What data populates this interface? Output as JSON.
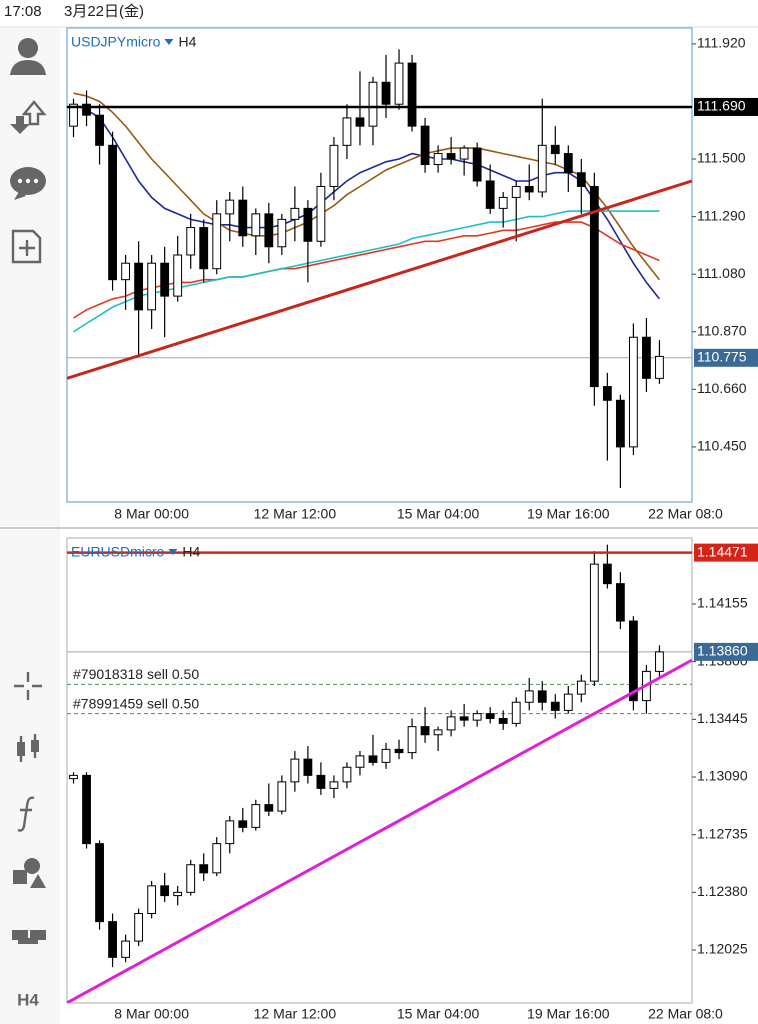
{
  "status_bar": {
    "time": "17:08",
    "date": "3月22日(金)"
  },
  "sidebar": {
    "timeframe": "H4"
  },
  "chart_data": [
    {
      "type": "candlestick",
      "title": "USDJPYmicro",
      "timeframe": "H4",
      "categories": [
        null,
        null,
        null,
        null,
        null,
        null,
        "8 Mar 00:00",
        null,
        null,
        null,
        null,
        null,
        null,
        null,
        null,
        null,
        null,
        "12 Mar 12:00",
        null,
        null,
        null,
        null,
        null,
        null,
        null,
        null,
        null,
        null,
        "15 Mar 04:00",
        null,
        null,
        null,
        null,
        null,
        null,
        null,
        null,
        null,
        "19 Mar 16:00",
        null,
        null,
        null,
        null,
        null,
        null,
        null,
        null,
        "22 Mar 08:0"
      ],
      "open": [
        111.62,
        111.7,
        111.66,
        111.55,
        111.06,
        111.12,
        110.95,
        111.12,
        111.0,
        111.15,
        111.25,
        111.1,
        111.3,
        111.35,
        111.22,
        111.3,
        111.18,
        111.28,
        111.32,
        111.2,
        111.4,
        111.55,
        111.65,
        111.62,
        111.78,
        111.7,
        111.85,
        111.62,
        111.48,
        111.52,
        111.5,
        111.54,
        111.42,
        111.32,
        111.36,
        111.4,
        111.38,
        111.55,
        111.52,
        111.45,
        111.4,
        110.67,
        110.62,
        110.45,
        110.85,
        110.7,
        null,
        null
      ],
      "high": [
        111.72,
        111.75,
        111.7,
        111.6,
        111.15,
        111.2,
        111.15,
        111.18,
        111.22,
        111.3,
        111.28,
        111.35,
        111.38,
        111.4,
        111.32,
        111.34,
        111.3,
        111.4,
        111.35,
        111.45,
        111.58,
        111.7,
        111.82,
        111.8,
        111.88,
        111.9,
        111.88,
        111.65,
        111.55,
        111.58,
        111.55,
        111.56,
        111.48,
        111.38,
        111.42,
        111.48,
        111.72,
        111.62,
        111.55,
        111.5,
        111.45,
        110.72,
        110.64,
        110.9,
        110.92,
        110.84,
        null,
        null
      ],
      "low": [
        111.58,
        111.62,
        111.48,
        111.02,
        110.95,
        110.78,
        110.88,
        110.85,
        110.98,
        111.1,
        111.05,
        111.08,
        111.2,
        111.18,
        111.15,
        111.12,
        111.15,
        111.2,
        111.05,
        111.18,
        111.35,
        111.5,
        111.55,
        111.55,
        111.65,
        111.68,
        111.6,
        111.45,
        111.45,
        111.48,
        111.44,
        111.4,
        111.3,
        111.25,
        111.2,
        111.35,
        111.36,
        111.48,
        111.38,
        111.3,
        110.6,
        110.4,
        110.3,
        110.42,
        110.65,
        110.68,
        null,
        null
      ],
      "close": [
        111.7,
        111.66,
        111.55,
        111.06,
        111.12,
        110.95,
        111.12,
        111.0,
        111.15,
        111.25,
        111.1,
        111.3,
        111.35,
        111.22,
        111.3,
        111.18,
        111.28,
        111.32,
        111.2,
        111.4,
        111.55,
        111.65,
        111.62,
        111.78,
        111.7,
        111.85,
        111.62,
        111.48,
        111.52,
        111.5,
        111.54,
        111.42,
        111.32,
        111.36,
        111.4,
        111.38,
        111.55,
        111.52,
        111.45,
        111.4,
        110.67,
        110.62,
        110.45,
        110.85,
        110.7,
        110.78,
        null,
        null
      ],
      "series": [
        {
          "color": "#1c2a9a",
          "values": [
            111.7,
            111.68,
            111.65,
            111.58,
            111.5,
            111.42,
            111.36,
            111.32,
            111.3,
            111.28,
            111.27,
            111.26,
            111.26,
            111.25,
            111.25,
            111.25,
            111.26,
            111.28,
            111.3,
            111.34,
            111.38,
            111.42,
            111.45,
            111.47,
            111.49,
            111.5,
            111.52,
            111.51,
            111.5,
            111.5,
            111.49,
            111.48,
            111.46,
            111.44,
            111.42,
            111.42,
            111.44,
            111.45,
            111.45,
            111.42,
            111.35,
            111.28,
            111.2,
            111.12,
            111.05,
            110.99,
            null,
            null
          ]
        },
        {
          "color": "#9a5a12",
          "values": [
            111.74,
            111.73,
            111.71,
            111.67,
            111.62,
            111.56,
            111.5,
            111.45,
            111.4,
            111.35,
            111.3,
            111.27,
            111.24,
            111.23,
            111.22,
            111.22,
            111.23,
            111.25,
            111.27,
            111.3,
            111.33,
            111.37,
            111.4,
            111.43,
            111.46,
            111.48,
            111.5,
            111.52,
            111.53,
            111.54,
            111.54,
            111.54,
            111.53,
            111.52,
            111.51,
            111.5,
            111.49,
            111.48,
            111.46,
            111.44,
            111.38,
            111.32,
            111.25,
            111.18,
            111.12,
            111.06,
            null,
            null
          ]
        },
        {
          "color": "#e03a22",
          "values": [
            110.92,
            110.95,
            110.97,
            110.99,
            111.0,
            111.02,
            111.03,
            111.04,
            111.05,
            111.05,
            111.06,
            111.06,
            111.07,
            111.07,
            111.08,
            111.09,
            111.1,
            111.1,
            111.11,
            111.12,
            111.13,
            111.14,
            111.15,
            111.16,
            111.17,
            111.18,
            111.19,
            111.2,
            111.2,
            111.21,
            111.22,
            111.22,
            111.23,
            111.24,
            111.24,
            111.25,
            111.26,
            111.27,
            111.27,
            111.27,
            111.25,
            111.22,
            111.19,
            111.17,
            111.15,
            111.13,
            null,
            null
          ]
        },
        {
          "color": "#1ec0c8",
          "values": [
            110.87,
            110.9,
            110.93,
            110.96,
            110.98,
            111.0,
            111.01,
            111.02,
            111.03,
            111.04,
            111.05,
            111.06,
            111.07,
            111.07,
            111.08,
            111.09,
            111.1,
            111.11,
            111.12,
            111.13,
            111.14,
            111.15,
            111.16,
            111.17,
            111.18,
            111.19,
            111.21,
            111.22,
            111.23,
            111.24,
            111.25,
            111.26,
            111.27,
            111.27,
            111.28,
            111.29,
            111.29,
            111.3,
            111.31,
            111.31,
            111.31,
            111.31,
            111.31,
            111.31,
            111.31,
            111.31,
            null,
            null
          ]
        }
      ],
      "ylim": [
        110.249,
        111.978
      ],
      "yticks": [
        {
          "value": 111.92,
          "label": "111.920"
        },
        {
          "value": 111.5,
          "label": "111.500"
        },
        {
          "value": 111.29,
          "label": "111.290"
        },
        {
          "value": 111.08,
          "label": "111.080"
        },
        {
          "value": 110.87,
          "label": "110.870"
        },
        {
          "value": 110.66,
          "label": "110.660"
        },
        {
          "value": 110.45,
          "label": "110.450"
        }
      ],
      "trendline": {
        "color": "#c8261a",
        "values": [
          110.7,
          111.42
        ]
      },
      "hlines": [
        {
          "value": 111.69,
          "label": "111.690",
          "color": "#000000"
        }
      ],
      "current_price": {
        "value": 110.775,
        "label": "110.775",
        "color": "#3c6a96"
      },
      "orders": []
    },
    {
      "type": "candlestick",
      "title": "EURUSDmicro",
      "timeframe": "H4",
      "categories": [
        null,
        null,
        null,
        null,
        null,
        null,
        "8 Mar 00:00",
        null,
        null,
        null,
        null,
        null,
        null,
        null,
        null,
        null,
        null,
        "12 Mar 12:00",
        null,
        null,
        null,
        null,
        null,
        null,
        null,
        null,
        null,
        null,
        "15 Mar 04:00",
        null,
        null,
        null,
        null,
        null,
        null,
        null,
        null,
        null,
        "19 Mar 16:00",
        null,
        null,
        null,
        null,
        null,
        null,
        null,
        null,
        "22 Mar 08:0"
      ],
      "open": [
        1.1308,
        1.131,
        1.1268,
        1.122,
        1.1198,
        1.1208,
        1.1225,
        1.1242,
        1.1236,
        1.1238,
        1.1255,
        1.125,
        1.1268,
        1.1282,
        1.1278,
        1.1292,
        1.1288,
        1.1306,
        1.132,
        1.131,
        1.1302,
        1.1306,
        1.1315,
        1.1322,
        1.1318,
        1.1326,
        1.1324,
        1.134,
        1.1335,
        1.1338,
        1.1346,
        1.1344,
        1.1348,
        1.1345,
        1.1342,
        1.1355,
        1.1362,
        1.1355,
        1.135,
        1.136,
        1.1368,
        1.144,
        1.1428,
        1.1405,
        1.1356,
        1.1374,
        null,
        null
      ],
      "high": [
        1.1312,
        1.1312,
        1.127,
        1.1225,
        1.1212,
        1.1228,
        1.1245,
        1.125,
        1.1242,
        1.1258,
        1.1262,
        1.1272,
        1.1285,
        1.129,
        1.1295,
        1.1305,
        1.131,
        1.1325,
        1.1328,
        1.1318,
        1.131,
        1.1318,
        1.1325,
        1.1335,
        1.133,
        1.1332,
        1.1345,
        1.1352,
        1.134,
        1.135,
        1.1354,
        1.135,
        1.1352,
        1.135,
        1.1358,
        1.137,
        1.1368,
        1.136,
        1.1365,
        1.1372,
        1.1448,
        1.1452,
        1.1435,
        1.1408,
        1.1378,
        1.139,
        null,
        null
      ],
      "low": [
        1.1305,
        1.1265,
        1.1215,
        1.1192,
        1.1195,
        1.1205,
        1.1222,
        1.1232,
        1.123,
        1.1236,
        1.1245,
        1.1248,
        1.1262,
        1.1275,
        1.1276,
        1.1285,
        1.1286,
        1.13,
        1.1305,
        1.1298,
        1.1296,
        1.1302,
        1.131,
        1.1316,
        1.1314,
        1.132,
        1.132,
        1.133,
        1.1325,
        1.1334,
        1.134,
        1.134,
        1.1342,
        1.1338,
        1.134,
        1.135,
        1.135,
        1.1345,
        1.1348,
        1.1355,
        1.1365,
        1.1425,
        1.14,
        1.135,
        1.1348,
        1.137,
        null,
        null
      ],
      "close": [
        1.131,
        1.1268,
        1.122,
        1.1198,
        1.1208,
        1.1225,
        1.1242,
        1.1236,
        1.1238,
        1.1255,
        1.125,
        1.1268,
        1.1282,
        1.1278,
        1.1292,
        1.1288,
        1.1306,
        1.132,
        1.131,
        1.1302,
        1.1306,
        1.1315,
        1.1322,
        1.1318,
        1.1326,
        1.1324,
        1.134,
        1.1335,
        1.1338,
        1.1346,
        1.1344,
        1.1348,
        1.1345,
        1.1342,
        1.1355,
        1.1362,
        1.1355,
        1.135,
        1.136,
        1.1368,
        1.144,
        1.1428,
        1.1405,
        1.1356,
        1.1374,
        1.1386,
        null,
        null
      ],
      "series": [],
      "ylim": [
        1.11699,
        1.14561
      ],
      "yticks": [
        {
          "value": 1.14155,
          "label": "1.14155"
        },
        {
          "value": 1.138,
          "label": "1.13800"
        },
        {
          "value": 1.13445,
          "label": "1.13445"
        },
        {
          "value": 1.1309,
          "label": "1.13090"
        },
        {
          "value": 1.12735,
          "label": "1.12735"
        },
        {
          "value": 1.1238,
          "label": "1.12380"
        },
        {
          "value": 1.12025,
          "label": "1.12025"
        }
      ],
      "trendline": {
        "color": "#e020d8",
        "values": [
          1.117,
          1.1381
        ]
      },
      "hlines": [
        {
          "value": 1.14471,
          "label": "1.14471",
          "color": "#d42418"
        }
      ],
      "current_price": {
        "value": 1.1386,
        "label": "1.13860",
        "color": "#3c6a96"
      },
      "orders": [
        {
          "label": "#79018318 sell 0.50",
          "value": 1.1366
        },
        {
          "label": "#78991459 sell 0.50",
          "value": 1.1348
        }
      ]
    }
  ]
}
